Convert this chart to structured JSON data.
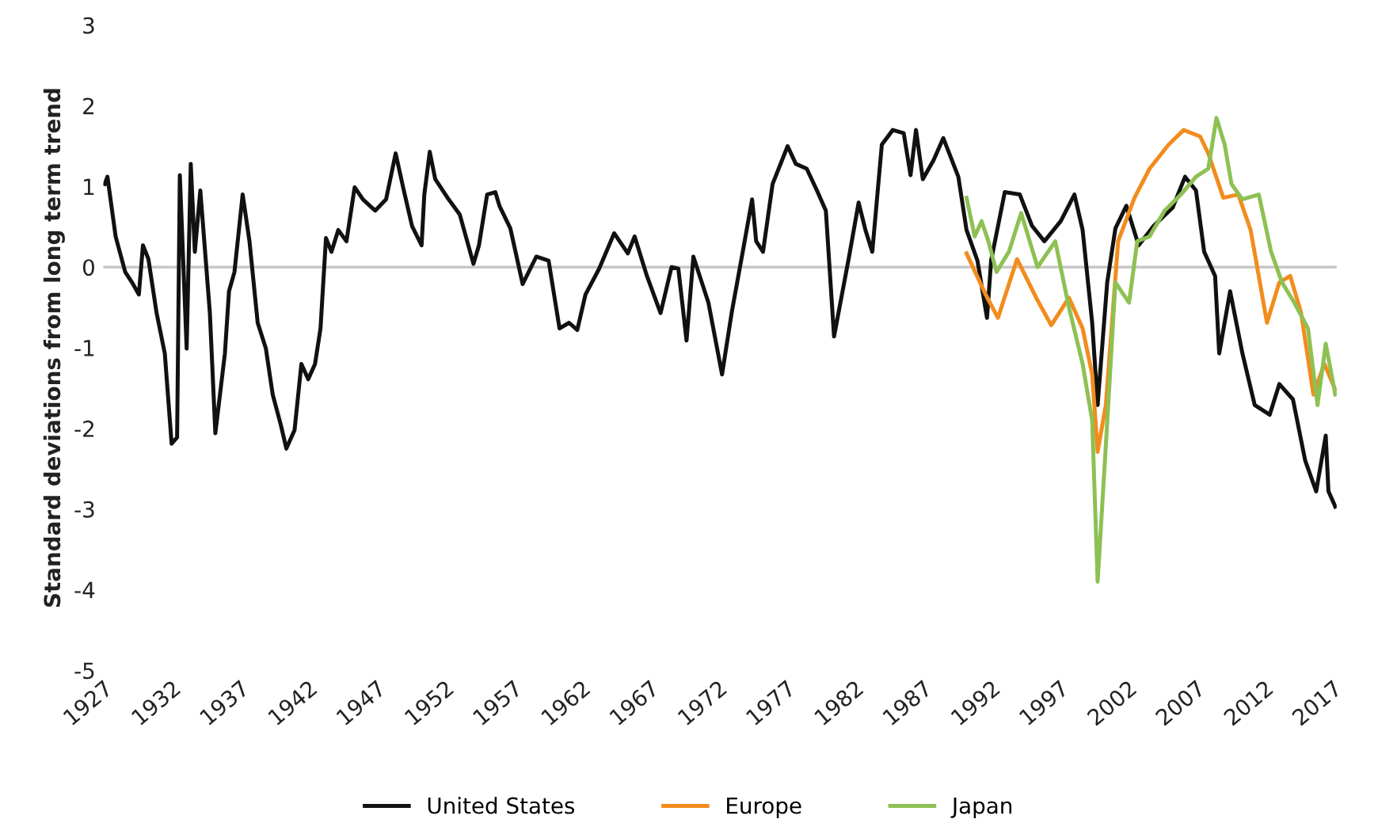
{
  "chart_data": {
    "type": "line",
    "ylabel": "Standard deviations from long term trend",
    "xlim": [
      1927,
      2017.3
    ],
    "xticks": [
      1927,
      1932,
      1937,
      1942,
      1947,
      1952,
      1957,
      1962,
      1967,
      1972,
      1977,
      1982,
      1987,
      1992,
      1997,
      2002,
      2007,
      2012,
      2017
    ],
    "ylim": [
      -5,
      3
    ],
    "yticks": [
      -5,
      -4,
      -3,
      -2,
      -1,
      0,
      1,
      2,
      3
    ],
    "grid": false,
    "legend": "bottom",
    "line_style": "solid",
    "marker": "none",
    "ref_lines": [
      {
        "axis": "y",
        "value": 0,
        "color": "#c8c8c8"
      }
    ],
    "series": [
      {
        "name": "United States",
        "color": "#111111",
        "x": [
          1927.1,
          1927.3,
          1927.9,
          1928.6,
          1929.1,
          1929.6,
          1929.9,
          1930.3,
          1930.9,
          1931.5,
          1932.0,
          1932.4,
          1932.6,
          1933.1,
          1933.4,
          1933.7,
          1934.1,
          1934.8,
          1935.2,
          1935.9,
          1936.2,
          1936.6,
          1937.2,
          1937.7,
          1938.3,
          1938.9,
          1939.4,
          1940.0,
          1940.4,
          1941.0,
          1941.5,
          1942.0,
          1942.5,
          1942.9,
          1943.3,
          1943.7,
          1944.2,
          1944.8,
          1945.4,
          1946.0,
          1946.9,
          1947.7,
          1948.4,
          1949.0,
          1949.6,
          1950.3,
          1950.5,
          1950.9,
          1951.3,
          1952.2,
          1953.1,
          1954.1,
          1954.5,
          1955.1,
          1955.7,
          1956.0,
          1956.8,
          1957.7,
          1958.7,
          1959.6,
          1960.4,
          1961.1,
          1961.7,
          1962.3,
          1963.3,
          1964.4,
          1965.4,
          1965.9,
          1966.8,
          1967.8,
          1968.6,
          1969.1,
          1969.7,
          1970.2,
          1971.3,
          1972.3,
          1973.0,
          1973.9,
          1974.5,
          1974.8,
          1975.3,
          1976.0,
          1977.1,
          1977.7,
          1978.5,
          1979.3,
          1979.9,
          1980.5,
          1981.6,
          1982.3,
          1982.8,
          1983.3,
          1984.0,
          1984.8,
          1985.6,
          1986.1,
          1986.5,
          1987.0,
          1987.8,
          1988.5,
          1989.6,
          1990.2,
          1991.0,
          1991.7,
          1992.0,
          1993.0,
          1994.1,
          1995.0,
          1995.9,
          1997.1,
          1998.1,
          1998.7,
          1999.4,
          1999.8,
          2000.5,
          2001.1,
          2001.9,
          2002.8,
          2003.9,
          2005.3,
          2006.2,
          2007.0,
          2007.6,
          2008.4,
          2008.7,
          2009.5,
          2010.4,
          2011.3,
          2012.4,
          2013.1,
          2014.1,
          2015.0,
          2015.8,
          2016.5,
          2016.7,
          2017.2
        ],
        "values": [
          1.03,
          1.12,
          0.38,
          -0.06,
          -0.19,
          -0.34,
          0.27,
          0.1,
          -0.57,
          -1.07,
          -2.19,
          -2.11,
          1.14,
          -1.01,
          1.28,
          0.19,
          0.95,
          -0.57,
          -2.06,
          -1.07,
          -0.3,
          -0.06,
          0.9,
          0.32,
          -0.69,
          -1.01,
          -1.58,
          -1.96,
          -2.25,
          -2.02,
          -1.2,
          -1.39,
          -1.2,
          -0.76,
          0.36,
          0.19,
          0.46,
          0.32,
          0.99,
          0.84,
          0.7,
          0.84,
          1.41,
          0.95,
          0.51,
          0.27,
          0.9,
          1.43,
          1.09,
          0.86,
          0.65,
          0.04,
          0.27,
          0.9,
          0.93,
          0.76,
          0.48,
          -0.21,
          0.13,
          0.08,
          -0.76,
          -0.69,
          -0.78,
          -0.34,
          -0.02,
          0.42,
          0.17,
          0.38,
          -0.11,
          -0.57,
          0.0,
          -0.02,
          -0.91,
          0.13,
          -0.44,
          -1.33,
          -0.57,
          0.27,
          0.84,
          0.32,
          0.19,
          1.03,
          1.5,
          1.28,
          1.22,
          0.93,
          0.7,
          -0.86,
          0.13,
          0.8,
          0.46,
          0.19,
          1.52,
          1.7,
          1.66,
          1.14,
          1.7,
          1.09,
          1.33,
          1.6,
          1.12,
          0.46,
          0.08,
          -0.63,
          0.08,
          0.93,
          0.9,
          0.51,
          0.32,
          0.57,
          0.9,
          0.46,
          -0.69,
          -1.71,
          -0.19,
          0.48,
          0.76,
          0.27,
          0.51,
          0.74,
          1.12,
          0.95,
          0.19,
          -0.11,
          -1.07,
          -0.3,
          -1.07,
          -1.71,
          -1.83,
          -1.45,
          -1.64,
          -2.4,
          -2.78,
          -2.09,
          -2.78,
          -2.97
        ]
      },
      {
        "name": "Europe",
        "color": "#f28c1e",
        "x": [
          1990.2,
          1991.6,
          1992.5,
          1993.9,
          1995.3,
          1996.4,
          1997.7,
          1998.7,
          1999.4,
          1999.8,
          2000.4,
          2001.3,
          2002.5,
          2003.6,
          2005.0,
          2006.1,
          2007.3,
          2007.9,
          2009.0,
          2010.1,
          2011.0,
          2012.2,
          2013.1,
          2013.9,
          2014.7,
          2015.6,
          2016.4,
          2017.2
        ],
        "values": [
          0.17,
          -0.34,
          -0.63,
          0.1,
          -0.38,
          -0.72,
          -0.38,
          -0.76,
          -1.33,
          -2.29,
          -1.71,
          0.32,
          0.86,
          1.22,
          1.52,
          1.7,
          1.62,
          1.41,
          0.86,
          0.9,
          0.46,
          -0.69,
          -0.19,
          -0.11,
          -0.57,
          -1.58,
          -1.2,
          -1.52
        ]
      },
      {
        "name": "Japan",
        "color": "#8dc153",
        "x": [
          1990.2,
          1990.8,
          1991.3,
          1991.8,
          1992.4,
          1993.3,
          1994.2,
          1995.4,
          1996.7,
          1997.7,
          1998.7,
          1999.4,
          1999.8,
          2000.4,
          2001.1,
          2002.1,
          2002.7,
          2003.6,
          2004.7,
          2005.9,
          2007.0,
          2007.9,
          2008.5,
          2009.1,
          2009.6,
          2010.4,
          2011.6,
          2012.5,
          2013.3,
          2014.2,
          2015.2,
          2015.9,
          2016.5,
          2017.2
        ],
        "values": [
          0.86,
          0.38,
          0.57,
          0.32,
          -0.06,
          0.19,
          0.67,
          0.0,
          0.32,
          -0.5,
          -1.2,
          -1.9,
          -3.9,
          -2.21,
          -0.19,
          -0.44,
          0.32,
          0.38,
          0.7,
          0.9,
          1.12,
          1.22,
          1.85,
          1.52,
          1.03,
          0.84,
          0.9,
          0.19,
          -0.19,
          -0.44,
          -0.76,
          -1.71,
          -0.95,
          -1.58
        ]
      }
    ]
  }
}
